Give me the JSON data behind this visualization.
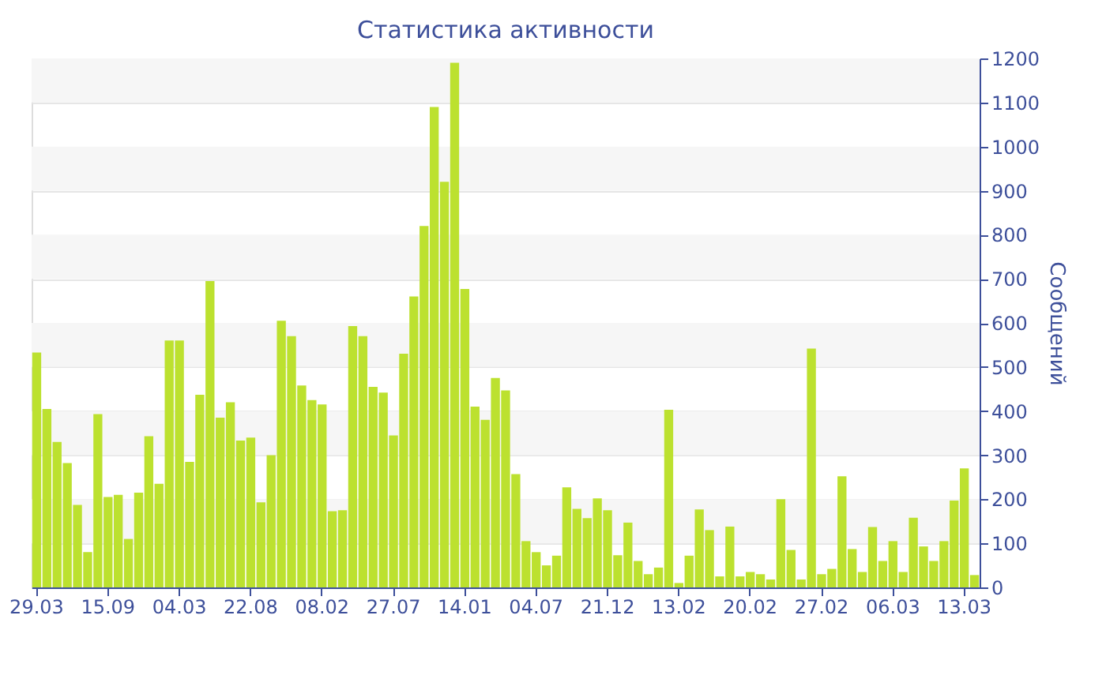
{
  "chart_data": {
    "type": "bar",
    "title": "Статистика активности",
    "ylabel": "Сообщений",
    "categories": [
      "29.03",
      null,
      null,
      null,
      null,
      null,
      null,
      "15.09",
      null,
      null,
      null,
      null,
      null,
      null,
      "04.03",
      null,
      null,
      null,
      null,
      null,
      null,
      "22.08",
      null,
      null,
      null,
      null,
      null,
      null,
      "08.02",
      null,
      null,
      null,
      null,
      null,
      null,
      "27.07",
      null,
      null,
      null,
      null,
      null,
      null,
      "14.01",
      null,
      null,
      null,
      null,
      null,
      null,
      "04.07",
      null,
      null,
      null,
      null,
      null,
      null,
      "21.12",
      null,
      null,
      null,
      null,
      null,
      null,
      "13.02",
      null,
      null,
      null,
      null,
      null,
      null,
      "20.02",
      null,
      null,
      null,
      null,
      null,
      null,
      "27.02",
      null,
      null,
      null,
      null,
      null,
      null,
      "06.03",
      null,
      null,
      null,
      null,
      null,
      null,
      "13.03",
      null
    ],
    "values": [
      533,
      405,
      330,
      282,
      187,
      80,
      393,
      205,
      210,
      110,
      215,
      343,
      235,
      560,
      560,
      285,
      437,
      695,
      385,
      420,
      333,
      340,
      193,
      300,
      605,
      570,
      458,
      425,
      415,
      173,
      175,
      593,
      570,
      455,
      442,
      345,
      530,
      660,
      820,
      1090,
      920,
      1190,
      677,
      410,
      380,
      475,
      447,
      257,
      105,
      80,
      50,
      72,
      227,
      178,
      157,
      202,
      175,
      73,
      147,
      60,
      30,
      45,
      403,
      10,
      72,
      177,
      130,
      25,
      138,
      25,
      35,
      30,
      18,
      200,
      85,
      18,
      542,
      30,
      42,
      252,
      87,
      35,
      137,
      60,
      105,
      35,
      158,
      93,
      60,
      105,
      197,
      270,
      28
    ],
    "color": "#bce12f",
    "ylim": [
      0,
      1200
    ],
    "yticks": [
      0,
      100,
      200,
      300,
      400,
      500,
      600,
      700,
      800,
      900,
      1000,
      1100,
      1200
    ],
    "grid": "y"
  }
}
